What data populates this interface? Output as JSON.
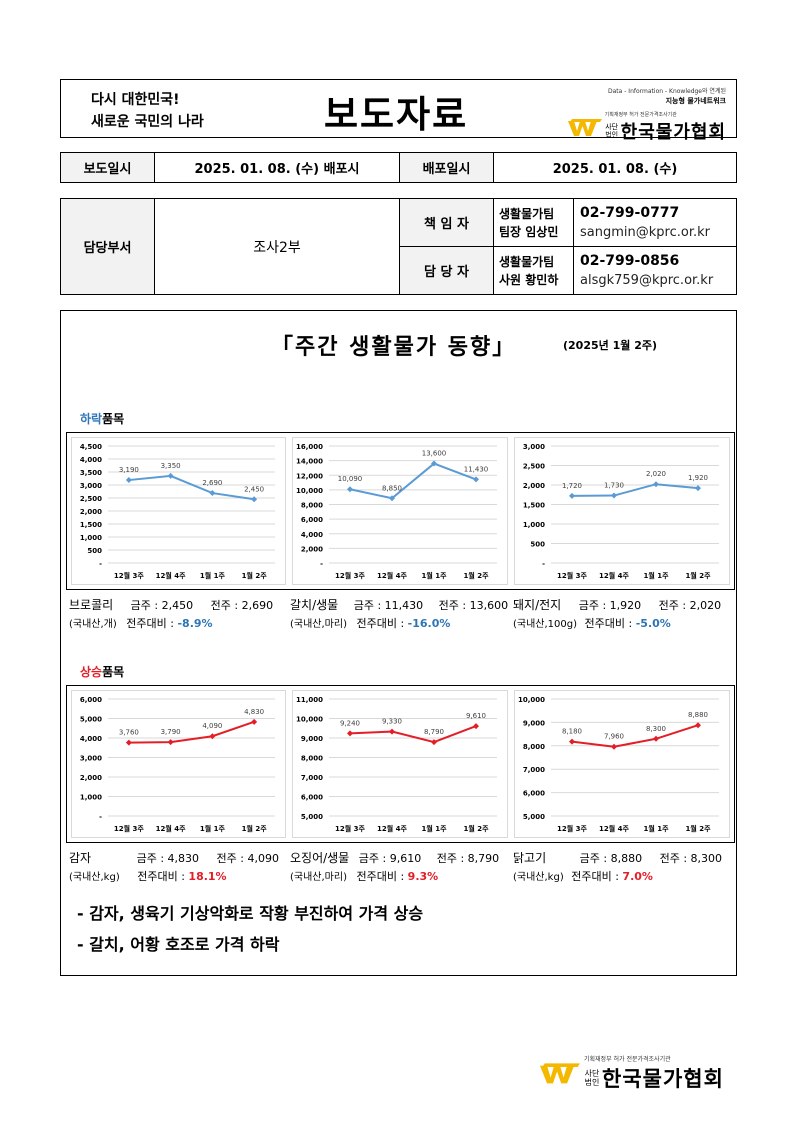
{
  "header": {
    "slogan_line1": "다시 대한민국!",
    "slogan_line2": "새로운 국민의 나라",
    "title": "보도자료",
    "tagline1": "Data - Information - Knowledge와 연계된",
    "tagline2": "지능형 물가네트워크",
    "brand_sub": "기획재정부 허가 전문가격조사기관",
    "brand_small_top": "사단",
    "brand_small_bottom": "법인",
    "brand_name": "한국물가협회"
  },
  "release": {
    "date_label": "보도일시",
    "date_value": "2025. 01. 08. (수) 배포시",
    "dist_label": "배포일시",
    "dist_value": "2025. 01. 08. (수)"
  },
  "contacts": {
    "dept_label": "담당부서",
    "dept_value": "조사2부",
    "rows": [
      {
        "role": "책 임 자",
        "team": "생활물가팀",
        "person": "팀장 임상민",
        "phone": "02-799-0777",
        "email": "sangmin@kprc.or.kr"
      },
      {
        "role": "담 당 자",
        "team": "생활물가팀",
        "person": "사원 황민하",
        "phone": "02-799-0856",
        "email": "alsgk759@kprc.or.kr"
      }
    ]
  },
  "report": {
    "title": "「주간 생활물가 동향」",
    "date": "(2025년 1월 2주)"
  },
  "sections": {
    "down_prefix": "하락",
    "down_suffix": "품목",
    "up_prefix": "상승",
    "up_suffix": "품목"
  },
  "labels": {
    "this_week": "금주 : ",
    "last_week": "전주 : ",
    "wow": "전주대비 : "
  },
  "colors": {
    "down_line": "#5b9bd5",
    "up_line": "#e41e26"
  },
  "chart_data": [
    {
      "type": "line",
      "categories": [
        "12월 3주",
        "12월 4주",
        "1월 1주",
        "1월 2주"
      ],
      "values": [
        3190,
        3350,
        2690,
        2450
      ],
      "ylim": [
        0,
        4500
      ],
      "yticks": [
        "-",
        "500",
        "1,000",
        "1,500",
        "2,000",
        "2,500",
        "3,000",
        "3,500",
        "4,000",
        "4,500"
      ],
      "data_labels": [
        "3,190",
        "3,350",
        "2,690",
        "2,450"
      ],
      "grid": true
    },
    {
      "type": "line",
      "categories": [
        "12월 3주",
        "12월 4주",
        "1월 1주",
        "1월 2주"
      ],
      "values": [
        10090,
        8850,
        13600,
        11430
      ],
      "ylim": [
        0,
        16000
      ],
      "yticks": [
        "-",
        "2,000",
        "4,000",
        "6,000",
        "8,000",
        "10,000",
        "12,000",
        "14,000",
        "16,000"
      ],
      "data_labels": [
        "10,090",
        "8,850",
        "13,600",
        "11,430"
      ],
      "grid": true
    },
    {
      "type": "line",
      "categories": [
        "12월 3주",
        "12월 4주",
        "1월 1주",
        "1월 2주"
      ],
      "values": [
        1720,
        1730,
        2020,
        1920
      ],
      "ylim": [
        0,
        3000
      ],
      "yticks": [
        "-",
        "500",
        "1,000",
        "1,500",
        "2,000",
        "2,500",
        "3,000"
      ],
      "data_labels": [
        "1,720",
        "1,730",
        "2,020",
        "1,920"
      ],
      "grid": true
    },
    {
      "type": "line",
      "categories": [
        "12월 3주",
        "12월 4주",
        "1월 1주",
        "1월 2주"
      ],
      "values": [
        3760,
        3790,
        4090,
        4830
      ],
      "ylim": [
        0,
        6000
      ],
      "yticks": [
        "-",
        "1,000",
        "2,000",
        "3,000",
        "4,000",
        "5,000",
        "6,000"
      ],
      "data_labels": [
        "3,760",
        "3,790",
        "4,090",
        "4,830"
      ],
      "grid": true
    },
    {
      "type": "line",
      "categories": [
        "12월 3주",
        "12월 4주",
        "1월 1주",
        "1월 2주"
      ],
      "values": [
        9240,
        9330,
        8790,
        9610
      ],
      "ylim": [
        5000,
        11000
      ],
      "yticks": [
        "5,000",
        "6,000",
        "7,000",
        "8,000",
        "9,000",
        "10,000",
        "11,000"
      ],
      "data_labels": [
        "9,240",
        "9,330",
        "8,790",
        "9,610"
      ],
      "grid": true
    },
    {
      "type": "line",
      "categories": [
        "12월 3주",
        "12월 4주",
        "1월 1주",
        "1월 2주"
      ],
      "values": [
        8180,
        7960,
        8300,
        8880
      ],
      "ylim": [
        5000,
        10000
      ],
      "yticks": [
        "5,000",
        "6,000",
        "7,000",
        "8,000",
        "9,000",
        "10,000"
      ],
      "data_labels": [
        "8,180",
        "7,960",
        "8,300",
        "8,880"
      ],
      "grid": true
    }
  ],
  "items": [
    {
      "name": "브로콜리",
      "sub": "(국내산,개)",
      "this_week": "2,450",
      "last_week": "2,690",
      "change": "-8.9%"
    },
    {
      "name": "갈치/생물",
      "sub": "(국내산,마리)",
      "this_week": "11,430",
      "last_week": "13,600",
      "change": "-16.0%"
    },
    {
      "name": "돼지/전지",
      "sub": "(국내산,100g)",
      "this_week": "1,920",
      "last_week": "2,020",
      "change": "-5.0%"
    },
    {
      "name": "감자",
      "sub": "(국내산,kg)",
      "this_week": "4,830",
      "last_week": "4,090",
      "change": "18.1%"
    },
    {
      "name": "오징어/생물",
      "sub": "(국내산,마리)",
      "this_week": "9,610",
      "last_week": "8,790",
      "change": "9.3%"
    },
    {
      "name": "닭고기",
      "sub": "(국내산,kg)",
      "this_week": "8,880",
      "last_week": "8,300",
      "change": "7.0%"
    }
  ],
  "notes": [
    "- 감자, 생육기 기상악화로 작황 부진하여 가격 상승",
    "- 갈치, 어황 호조로 가격 하락"
  ],
  "footer": {
    "brand_sub": "기획재정부 허가 전문가격조사기관",
    "brand_small_top": "사단",
    "brand_small_bottom": "법인",
    "brand_name": "한국물가협회"
  }
}
